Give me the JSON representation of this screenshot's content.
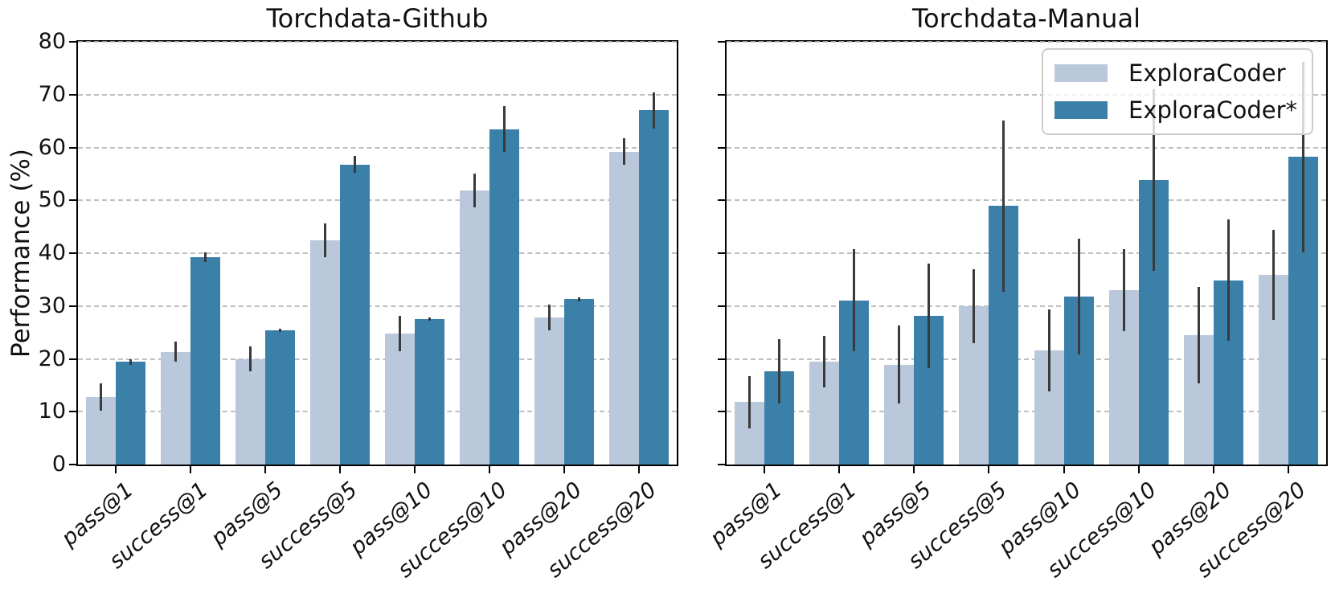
{
  "figure": {
    "ylabel": "Performance (%)",
    "background": "#ffffff",
    "colors": {
      "series_light": "#bac8dc",
      "series_dark": "#3a80a8",
      "errorbar": "#3a3a3a",
      "grid": "#b4b4b4",
      "spine": "#000000"
    },
    "legend": {
      "items": [
        {
          "label": "ExploraCoder",
          "color": "#bac8dc"
        },
        {
          "label": "ExploraCoder*",
          "color": "#3a80a8"
        }
      ]
    }
  },
  "chart_data": [
    {
      "type": "bar",
      "title": "Torchdata-Github",
      "ylabel": "Performance (%)",
      "ylim": [
        0,
        80
      ],
      "yticks": [
        0,
        10,
        20,
        30,
        40,
        50,
        60,
        70,
        80
      ],
      "grid": true,
      "categories": [
        "pass@1",
        "success@1",
        "pass@5",
        "success@5",
        "pass@10",
        "success@10",
        "pass@20",
        "success@20"
      ],
      "series": [
        {
          "name": "ExploraCoder",
          "color": "#bac8dc",
          "values": [
            12.8,
            21.3,
            20.0,
            42.4,
            24.8,
            51.8,
            27.8,
            59.2
          ],
          "errors": [
            2.6,
            1.9,
            2.3,
            3.2,
            3.3,
            3.2,
            2.4,
            2.5
          ]
        },
        {
          "name": "ExploraCoder*",
          "color": "#3a80a8",
          "values": [
            19.4,
            39.3,
            25.4,
            56.8,
            27.6,
            63.5,
            31.3,
            67.0
          ],
          "errors": [
            0.6,
            0.9,
            0.3,
            1.6,
            0.3,
            4.4,
            0.4,
            3.4
          ]
        }
      ]
    },
    {
      "type": "bar",
      "title": "Torchdata-Manual",
      "ylabel": "Performance (%)",
      "ylim": [
        0,
        80
      ],
      "yticks": [
        0,
        10,
        20,
        30,
        40,
        50,
        60,
        70,
        80
      ],
      "grid": true,
      "legend_position": "upper right",
      "categories": [
        "pass@1",
        "success@1",
        "pass@5",
        "success@5",
        "pass@10",
        "success@10",
        "pass@20",
        "success@20"
      ],
      "series": [
        {
          "name": "ExploraCoder",
          "color": "#bac8dc",
          "values": [
            11.8,
            19.5,
            18.9,
            30.0,
            21.6,
            33.0,
            24.5,
            35.9
          ],
          "errors": [
            4.9,
            4.9,
            7.4,
            7.0,
            7.8,
            7.7,
            9.1,
            8.5
          ]
        },
        {
          "name": "ExploraCoder*",
          "color": "#3a80a8",
          "values": [
            17.6,
            31.1,
            28.2,
            48.9,
            31.8,
            53.9,
            34.9,
            58.2
          ],
          "errors": [
            6.1,
            9.6,
            9.9,
            16.2,
            11.0,
            17.2,
            11.5,
            18.0
          ]
        }
      ]
    }
  ]
}
